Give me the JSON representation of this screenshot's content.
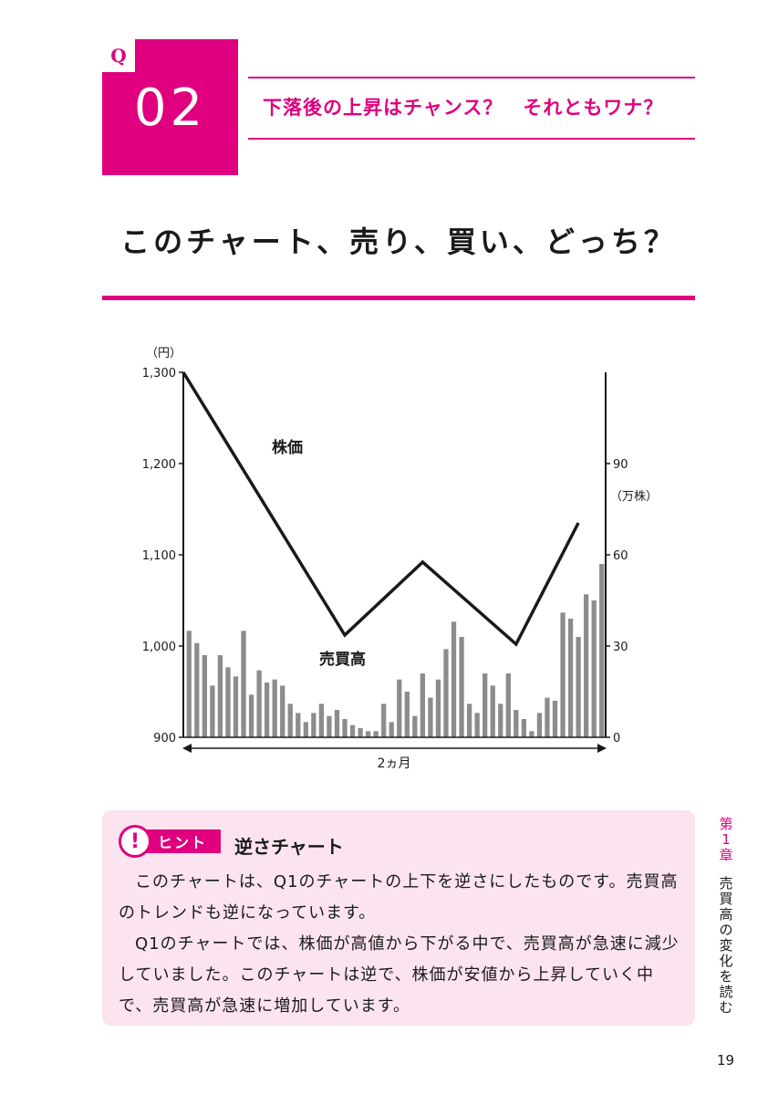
{
  "header": {
    "q_tag": "Q",
    "q_number": "02",
    "subtitle": "下落後の上昇はチャンス？　それともワナ？"
  },
  "heading": "このチャート、売り、買い、どっち？",
  "chart_data": {
    "type": "line+bar",
    "price_unit": "（円）",
    "volume_unit": "（万株）",
    "price_ylim": [
      900,
      1300
    ],
    "price_ticks": [
      "1,300",
      "1,200",
      "1,100",
      "1,000",
      "900"
    ],
    "price_tick_values": [
      1300,
      1200,
      1100,
      1000,
      900
    ],
    "volume_ylim": [
      0,
      120
    ],
    "volume_ticks": [
      "90",
      "60",
      "30",
      "0"
    ],
    "volume_tick_values": [
      90,
      60,
      30,
      0
    ],
    "xlabel": "2ヵ月",
    "price_series": {
      "name": "株価",
      "points": [
        [
          0,
          1300
        ],
        [
          20,
          1012
        ],
        [
          30,
          1092
        ],
        [
          42,
          1002
        ],
        [
          50,
          1135
        ]
      ]
    },
    "volume_series": {
      "name": "売買高",
      "values": [
        35,
        31,
        27,
        17,
        27,
        23,
        20,
        35,
        14,
        22,
        18,
        19,
        17,
        11,
        8,
        5,
        8,
        11,
        7,
        9,
        6,
        4,
        3,
        2,
        2,
        11,
        5,
        19,
        15,
        7,
        21,
        13,
        19,
        29,
        38,
        33,
        11,
        8,
        21,
        17,
        11,
        21,
        9,
        6,
        2,
        8,
        13,
        12,
        41,
        39,
        33,
        47,
        45,
        57
      ]
    }
  },
  "hint": {
    "icon": "exclamation-icon",
    "label": "ヒント",
    "title": "逆さチャート",
    "paragraphs": [
      "このチャートは、Q1のチャートの上下を逆さにしたものです。売買高のトレンドも逆になっています。",
      "Q1のチャートでは、株価が高値から下がる中で、売買高が急速に減少していました。このチャートは逆で、株価が安値から上昇していく中で、売買高が急速に増加しています。"
    ]
  },
  "side": {
    "chapter": [
      "第",
      "1",
      "章"
    ],
    "title": [
      "売",
      "買",
      "高",
      "の",
      "変",
      "化",
      "を",
      "読",
      "む"
    ]
  },
  "page_number": "19",
  "colors": {
    "accent": "#e0007f",
    "hint_bg": "#fbe4ef",
    "bar": "#8c8c8c"
  }
}
